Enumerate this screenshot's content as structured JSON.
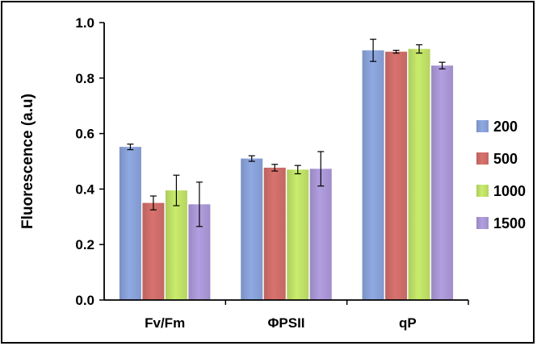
{
  "chart_data": {
    "type": "bar",
    "title": "",
    "xlabel": "",
    "ylabel": "Fluorescence (a.u)",
    "ylim": [
      0,
      1.0
    ],
    "yticks": [
      "0.0",
      "0.2",
      "0.4",
      "0.6",
      "0.8",
      "1.0"
    ],
    "categories": [
      "Fv/Fm",
      "ΦPSII",
      "qP"
    ],
    "series": [
      {
        "name": "200",
        "color": "#8fa9e3",
        "values": [
          0.552,
          0.51,
          0.9
        ],
        "errors": [
          0.01,
          0.01,
          0.04
        ]
      },
      {
        "name": "500",
        "color": "#d9726e",
        "values": [
          0.35,
          0.477,
          0.895
        ],
        "errors": [
          0.025,
          0.012,
          0.005
        ]
      },
      {
        "name": "1000",
        "color": "#c9ec6c",
        "values": [
          0.395,
          0.47,
          0.905
        ],
        "errors": [
          0.055,
          0.015,
          0.015
        ]
      },
      {
        "name": "1500",
        "color": "#b29ee0",
        "values": [
          0.345,
          0.473,
          0.845
        ],
        "errors": [
          0.08,
          0.062,
          0.012
        ]
      }
    ],
    "grid": false,
    "legend_position": "right"
  }
}
